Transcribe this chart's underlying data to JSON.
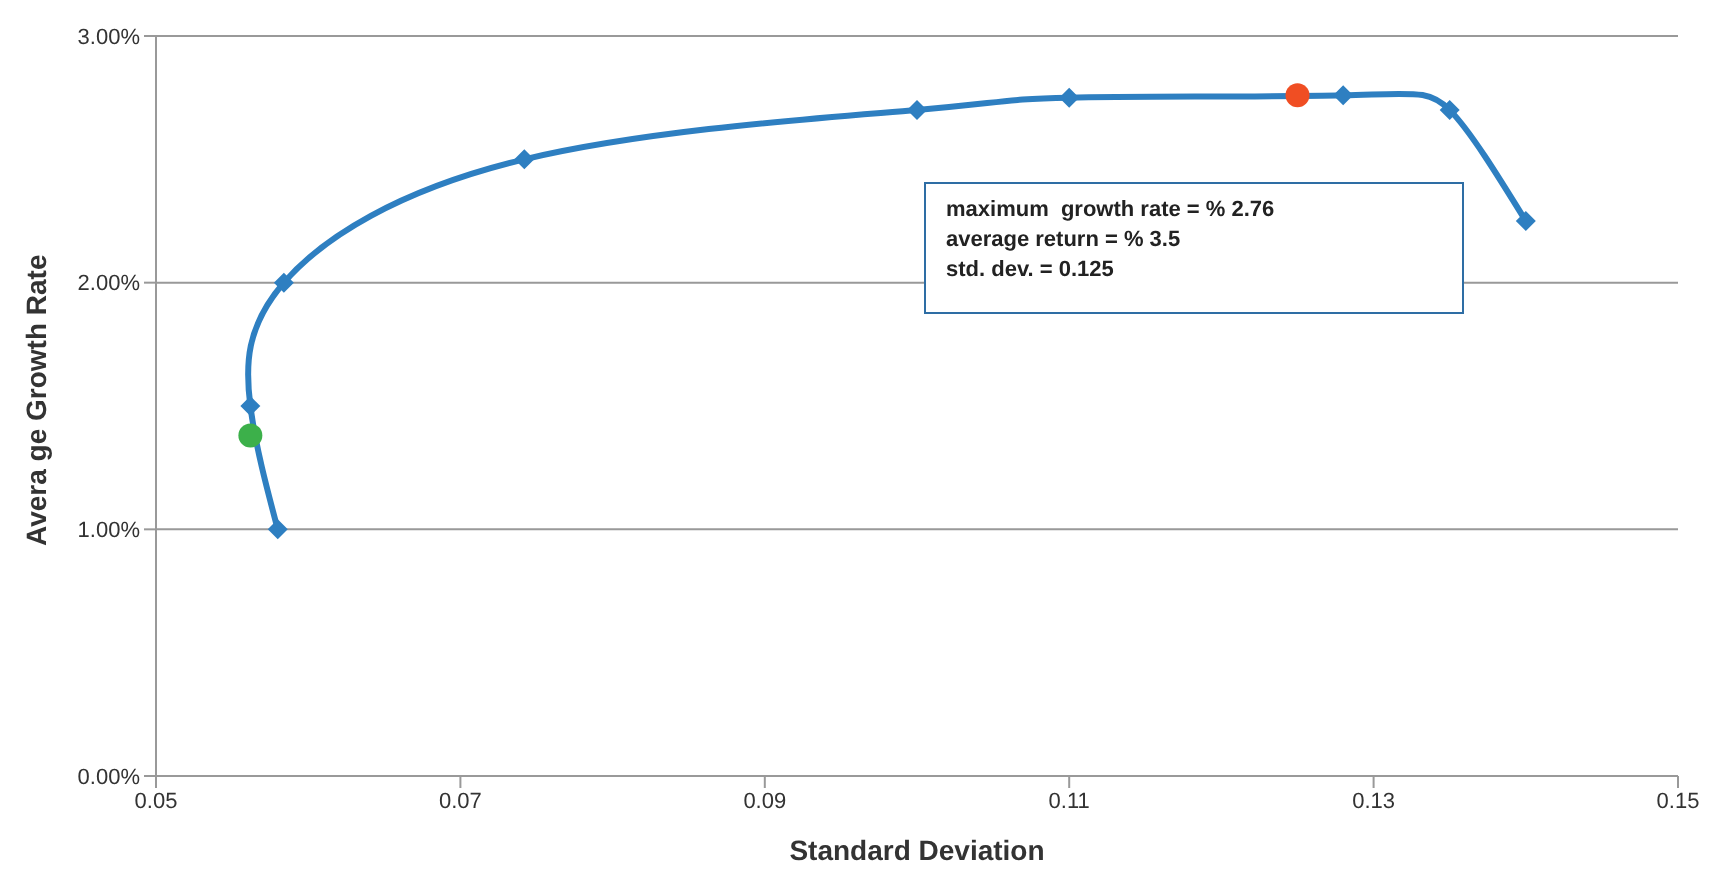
{
  "chart_data": {
    "type": "line",
    "xlabel": "Standard Deviation",
    "ylabel": "Avera ge Growth Rate",
    "annotations": [
      "maximum  growth rate = % 2.76",
      "average return = % 3.5",
      "std. dev. = 0.125"
    ],
    "series": [
      {
        "type": "line",
        "color": "#2e7fc1",
        "marker": "diamond",
        "x": [
          0.058,
          0.0562,
          0.0584,
          0.0742,
          0.1,
          0.11,
          0.128,
          0.135,
          0.14
        ],
        "values": [
          1.0,
          1.5,
          2.0,
          2.5,
          2.7,
          2.75,
          2.76,
          2.7,
          2.25
        ]
      },
      {
        "type": "scatter",
        "color": "#3cb04a",
        "marker": "circle",
        "x": [
          0.0562
        ],
        "values": [
          1.38
        ]
      },
      {
        "type": "scatter",
        "color": "#f04e23",
        "marker": "circle",
        "x": [
          0.125
        ],
        "values": [
          2.76
        ]
      }
    ],
    "xlim": [
      0.05,
      0.15
    ],
    "xticks": [
      0.05,
      0.07,
      0.09,
      0.11,
      0.13,
      0.15
    ],
    "ylim": [
      0,
      3
    ],
    "yticks": [
      {
        "value": 0,
        "label": "0.00%"
      },
      {
        "value": 1,
        "label": "1.00%"
      },
      {
        "value": 2,
        "label": "2.00%"
      },
      {
        "value": 3,
        "label": "3.00%"
      }
    ],
    "grid": "y",
    "legend": false
  }
}
